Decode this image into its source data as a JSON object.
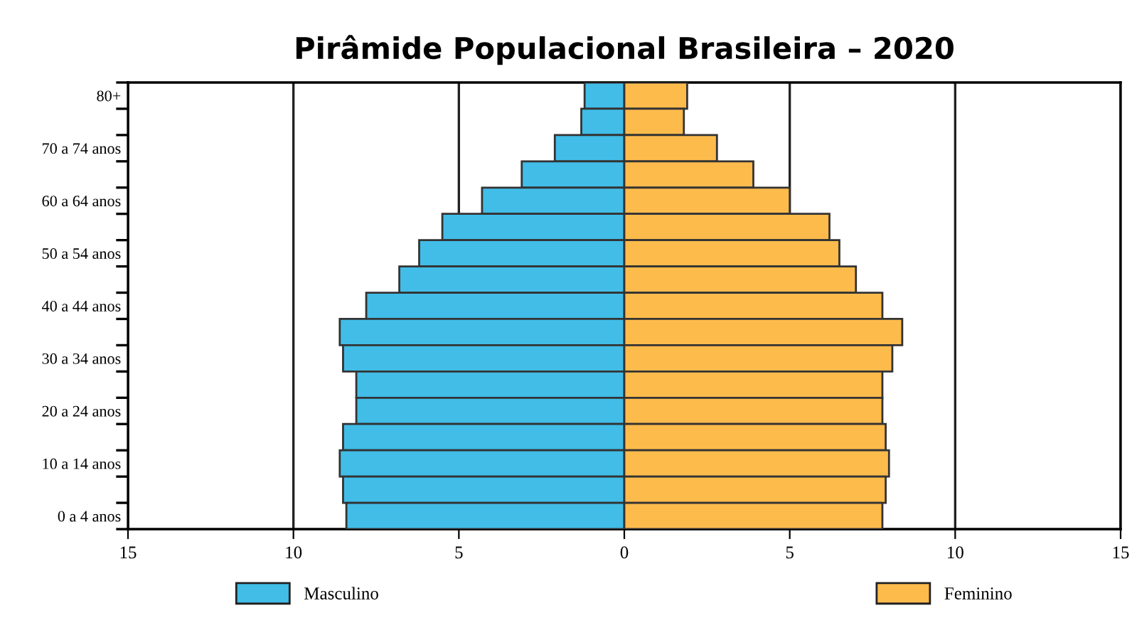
{
  "chart_data": {
    "type": "bar",
    "orientation": "horizontal",
    "title": "Pirâmide Populacional Brasileira – 2020",
    "categories": [
      "80+",
      null,
      "70 a 74 anos",
      null,
      "60 a 64 anos",
      null,
      "50 a 54 anos",
      null,
      "40 a 44 anos",
      null,
      "30 a 34 anos",
      null,
      "20 a 24 anos",
      null,
      "10 a 14 anos",
      null,
      "0 a 4 anos"
    ],
    "series": [
      {
        "name": "Masculino",
        "color": "#41bde8",
        "values": [
          -1.2,
          -1.3,
          -2.1,
          -3.1,
          -4.3,
          -5.5,
          -6.2,
          -6.8,
          -7.8,
          -8.6,
          -8.5,
          -8.1,
          -8.1,
          -8.5,
          -8.6,
          -8.5,
          -8.4
        ]
      },
      {
        "name": "Feminino",
        "color": "#fdbb4c",
        "values": [
          1.9,
          1.8,
          2.8,
          3.9,
          5.0,
          6.2,
          6.5,
          7.0,
          7.8,
          8.4,
          8.1,
          7.8,
          7.8,
          7.9,
          8.0,
          7.9,
          7.8
        ]
      }
    ],
    "xlim": [
      -15,
      15
    ],
    "xticks": [
      {
        "value": -15,
        "label": "15"
      },
      {
        "value": -10,
        "label": "10"
      },
      {
        "value": -5,
        "label": "5"
      },
      0,
      5,
      10,
      15
    ],
    "grid": "x",
    "legend": "bottom",
    "stacked": true
  }
}
